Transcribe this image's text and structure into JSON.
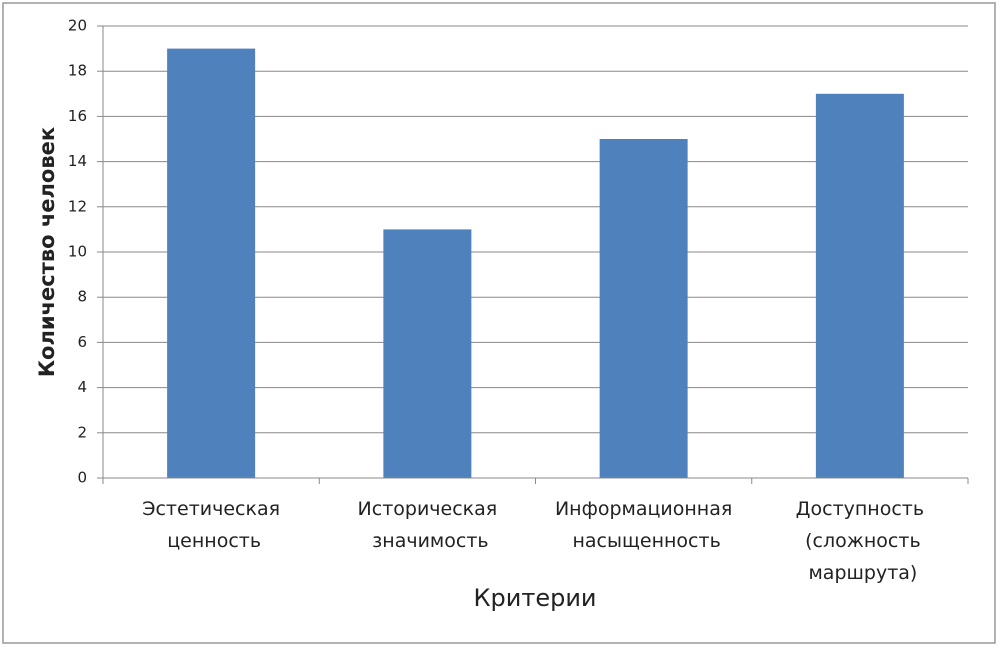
{
  "chart_data": {
    "type": "bar",
    "categories": [
      "Эстетическая ценность",
      "Историческая значимость",
      "Информационная насыщенность",
      "Доступность (сложность маршрута)"
    ],
    "values": [
      19,
      11,
      15,
      17
    ],
    "color": "#4f81bd",
    "x_label": "Критерии",
    "y_label": "Количество человек",
    "ylim": [
      0,
      20
    ],
    "yticks": [
      0,
      2,
      4,
      6,
      8,
      10,
      12,
      14,
      16,
      18,
      20
    ],
    "grid": true
  }
}
